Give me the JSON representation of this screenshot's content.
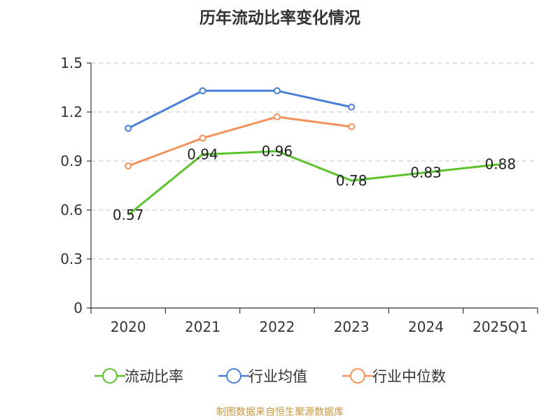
{
  "title": "历年流动比率变化情况",
  "footer": "制图数据来自恒生聚源数据库",
  "chart_data": {
    "type": "line",
    "title": "历年流动比率变化情况",
    "categories": [
      "2020",
      "2021",
      "2022",
      "2023",
      "2024",
      "2025Q1"
    ],
    "ylim": [
      0,
      1.5
    ],
    "yticks": [
      "0",
      "0.3",
      "0.6",
      "0.9",
      "1.2",
      "1.5"
    ],
    "grid": true,
    "legend_position": "bottom",
    "series": [
      {
        "name": "流动比率",
        "color": "#5cc22e",
        "values": [
          0.57,
          0.94,
          0.96,
          0.78,
          0.83,
          0.88
        ],
        "labels": [
          "0.57",
          "0.94",
          "0.96",
          "0.78",
          "0.83",
          "0.88"
        ],
        "markers": false
      },
      {
        "name": "行业均值",
        "color": "#4a7fd8",
        "values": [
          1.1,
          1.33,
          1.33,
          1.23,
          null,
          null
        ],
        "markers": true
      },
      {
        "name": "行业中位数",
        "color": "#f5915a",
        "values": [
          0.87,
          1.04,
          1.17,
          1.11,
          null,
          null
        ],
        "markers": true
      }
    ]
  }
}
